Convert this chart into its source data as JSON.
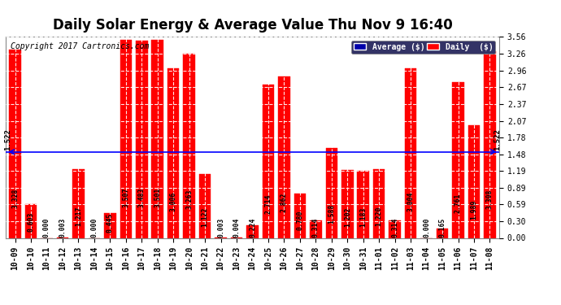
{
  "title": "Daily Solar Energy & Average Value Thu Nov 9 16:40",
  "copyright": "Copyright 2017 Cartronics.com",
  "categories": [
    "10-09",
    "10-10",
    "10-11",
    "10-12",
    "10-13",
    "10-14",
    "10-15",
    "10-16",
    "10-17",
    "10-18",
    "10-19",
    "10-20",
    "10-21",
    "10-22",
    "10-23",
    "10-24",
    "10-25",
    "10-26",
    "10-27",
    "10-28",
    "10-29",
    "10-30",
    "10-31",
    "11-01",
    "11-02",
    "11-03",
    "11-04",
    "11-05",
    "11-06",
    "11-07",
    "11-08"
  ],
  "values": [
    3.328,
    0.603,
    0.0,
    0.003,
    1.217,
    0.0,
    0.445,
    3.507,
    3.483,
    3.501,
    3.006,
    3.263,
    1.122,
    0.003,
    0.004,
    0.224,
    2.714,
    2.862,
    0.78,
    0.314,
    1.588,
    1.202,
    1.183,
    1.22,
    0.314,
    3.004,
    0.0,
    0.165,
    2.761,
    1.989,
    3.308
  ],
  "average": 1.522,
  "bar_color": "#FF0000",
  "avg_line_color": "#0000FF",
  "background_color": "#FFFFFF",
  "plot_bg_color": "#FFFFFF",
  "grid_color": "#BBBBBB",
  "ylim": [
    0.0,
    3.56
  ],
  "yticks": [
    0.0,
    0.3,
    0.59,
    0.89,
    1.19,
    1.48,
    1.78,
    2.07,
    2.37,
    2.67,
    2.96,
    3.26,
    3.56
  ],
  "avg_label": "1.522",
  "legend_avg_color": "#0000AA",
  "legend_daily_color": "#FF0000",
  "title_fontsize": 12,
  "copyright_fontsize": 7,
  "tick_fontsize": 7,
  "value_fontsize": 5.8,
  "avg_fontsize": 6.5
}
